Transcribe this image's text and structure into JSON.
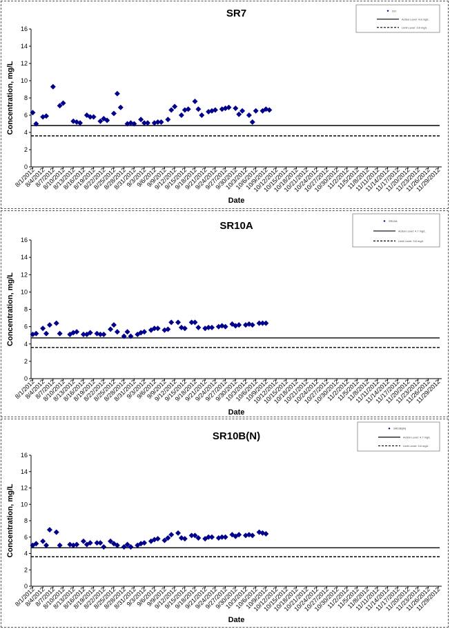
{
  "chart_data": [
    {
      "type": "scatter",
      "title": "SR7",
      "xlabel": "Date",
      "ylabel": "Concentration, mg/L",
      "ylim": [
        0,
        16
      ],
      "yticks": [
        0,
        2,
        4,
        6,
        8,
        10,
        12,
        14,
        16
      ],
      "grid": false,
      "legend_position": "top-right",
      "x_labels": [
        "8/1/2012",
        "8/4/2012",
        "8/7/2012",
        "8/10/2012",
        "8/13/2012",
        "8/16/2012",
        "8/19/2012",
        "8/22/2012",
        "8/25/2012",
        "8/28/2012",
        "8/31/2012",
        "9/3/2012",
        "9/6/2012",
        "9/9/2012",
        "9/12/2012",
        "9/15/2012",
        "9/18/2012",
        "9/21/2012",
        "9/24/2012",
        "9/27/2012",
        "9/30/2012",
        "10/3/2012",
        "10/6/2012",
        "10/9/2012",
        "10/12/2012",
        "10/15/2012",
        "10/18/2012",
        "10/21/2012",
        "10/24/2012",
        "10/27/2012",
        "10/30/2012",
        "11/2/2012",
        "11/5/2012",
        "11/8/2012",
        "11/11/2012",
        "11/14/2012",
        "11/17/2012",
        "11/20/2012",
        "11/23/2012",
        "11/26/2012",
        "11/29/2012"
      ],
      "legend": {
        "series_label": "DO",
        "upper_label": "Action Level: 4.8 mg/L",
        "lower_label": "Limit Level: 3.6 mg/L"
      },
      "reference_lines": [
        {
          "value": 4.8,
          "style": "solid"
        },
        {
          "value": 3.6,
          "style": "dashed"
        }
      ],
      "points": [
        {
          "day": 1,
          "value": 6.3
        },
        {
          "day": 2,
          "value": 5.0
        },
        {
          "day": 4,
          "value": 5.8
        },
        {
          "day": 5,
          "value": 5.9
        },
        {
          "day": 7,
          "value": 9.3
        },
        {
          "day": 9,
          "value": 7.1
        },
        {
          "day": 10,
          "value": 7.4
        },
        {
          "day": 13,
          "value": 5.3
        },
        {
          "day": 14,
          "value": 5.2
        },
        {
          "day": 15,
          "value": 5.1
        },
        {
          "day": 17,
          "value": 6.0
        },
        {
          "day": 18,
          "value": 5.8
        },
        {
          "day": 19,
          "value": 5.8
        },
        {
          "day": 21,
          "value": 5.3
        },
        {
          "day": 22,
          "value": 5.6
        },
        {
          "day": 23,
          "value": 5.4
        },
        {
          "day": 25,
          "value": 6.2
        },
        {
          "day": 26,
          "value": 8.5
        },
        {
          "day": 27,
          "value": 6.9
        },
        {
          "day": 29,
          "value": 5.0
        },
        {
          "day": 30,
          "value": 5.1
        },
        {
          "day": 31,
          "value": 5.0
        },
        {
          "day": 33,
          "value": 5.5
        },
        {
          "day": 34,
          "value": 5.1
        },
        {
          "day": 35,
          "value": 5.1
        },
        {
          "day": 37,
          "value": 5.1
        },
        {
          "day": 38,
          "value": 5.2
        },
        {
          "day": 39,
          "value": 5.2
        },
        {
          "day": 41,
          "value": 5.5
        },
        {
          "day": 42,
          "value": 6.6
        },
        {
          "day": 43,
          "value": 7.0
        },
        {
          "day": 45,
          "value": 6.0
        },
        {
          "day": 46,
          "value": 6.6
        },
        {
          "day": 47,
          "value": 6.7
        },
        {
          "day": 49,
          "value": 7.6
        },
        {
          "day": 50,
          "value": 6.7
        },
        {
          "day": 51,
          "value": 6.0
        },
        {
          "day": 53,
          "value": 6.4
        },
        {
          "day": 54,
          "value": 6.5
        },
        {
          "day": 55,
          "value": 6.6
        },
        {
          "day": 57,
          "value": 6.7
        },
        {
          "day": 58,
          "value": 6.8
        },
        {
          "day": 59,
          "value": 6.9
        },
        {
          "day": 61,
          "value": 6.8
        },
        {
          "day": 62,
          "value": 6.1
        },
        {
          "day": 63,
          "value": 6.5
        },
        {
          "day": 65,
          "value": 6.0
        },
        {
          "day": 66,
          "value": 5.2
        },
        {
          "day": 67,
          "value": 6.5
        },
        {
          "day": 69,
          "value": 6.5
        },
        {
          "day": 70,
          "value": 6.7
        },
        {
          "day": 71,
          "value": 6.6
        }
      ]
    },
    {
      "type": "scatter",
      "title": "SR10A",
      "xlabel": "Date",
      "ylabel": "Concentration, mg/L",
      "ylim": [
        0,
        16
      ],
      "yticks": [
        0,
        2,
        4,
        6,
        8,
        10,
        12,
        14,
        16
      ],
      "grid": false,
      "legend_position": "top-right",
      "x_labels": [
        "8/1/2012",
        "8/4/2012",
        "8/7/2012",
        "8/10/2012",
        "8/13/2012",
        "8/16/2012",
        "8/19/2012",
        "8/22/2012",
        "8/25/2012",
        "8/28/2012",
        "8/31/2012",
        "9/3/2012",
        "9/6/2012",
        "9/9/2012",
        "9/12/2012",
        "9/15/2012",
        "9/18/2012",
        "9/21/2012",
        "9/24/2012",
        "9/27/2012",
        "9/30/2012",
        "10/3/2012",
        "10/6/2012",
        "10/9/2012",
        "10/12/2012",
        "10/15/2012",
        "10/18/2012",
        "10/21/2012",
        "10/24/2012",
        "10/27/2012",
        "10/30/2012",
        "11/2/2012",
        "11/5/2012",
        "11/8/2012",
        "11/11/2012",
        "11/14/2012",
        "11/17/2012",
        "11/20/2012",
        "11/23/2012",
        "11/26/2012",
        "11/29/2012"
      ],
      "legend": {
        "series_label": "SR10A",
        "upper_label": "Action Level: 4.7 mg/L",
        "lower_label": "Limit Level: 3.6 mg/L"
      },
      "reference_lines": [
        {
          "value": 4.7,
          "style": "solid"
        },
        {
          "value": 3.6,
          "style": "dashed"
        }
      ],
      "points": [
        {
          "day": 1,
          "value": 5.1
        },
        {
          "day": 2,
          "value": 5.2
        },
        {
          "day": 4,
          "value": 5.8
        },
        {
          "day": 5,
          "value": 5.2
        },
        {
          "day": 6,
          "value": 6.2
        },
        {
          "day": 8,
          "value": 6.4
        },
        {
          "day": 9,
          "value": 5.2
        },
        {
          "day": 12,
          "value": 5.1
        },
        {
          "day": 13,
          "value": 5.3
        },
        {
          "day": 14,
          "value": 5.4
        },
        {
          "day": 16,
          "value": 5.1
        },
        {
          "day": 17,
          "value": 5.1
        },
        {
          "day": 18,
          "value": 5.3
        },
        {
          "day": 20,
          "value": 5.2
        },
        {
          "day": 21,
          "value": 5.1
        },
        {
          "day": 22,
          "value": 5.1
        },
        {
          "day": 24,
          "value": 5.7
        },
        {
          "day": 25,
          "value": 6.2
        },
        {
          "day": 26,
          "value": 5.4
        },
        {
          "day": 28,
          "value": 4.9
        },
        {
          "day": 29,
          "value": 5.4
        },
        {
          "day": 30,
          "value": 4.9
        },
        {
          "day": 32,
          "value": 5.1
        },
        {
          "day": 33,
          "value": 5.3
        },
        {
          "day": 34,
          "value": 5.4
        },
        {
          "day": 36,
          "value": 5.6
        },
        {
          "day": 37,
          "value": 5.8
        },
        {
          "day": 38,
          "value": 5.8
        },
        {
          "day": 40,
          "value": 5.6
        },
        {
          "day": 41,
          "value": 5.7
        },
        {
          "day": 42,
          "value": 6.5
        },
        {
          "day": 44,
          "value": 6.5
        },
        {
          "day": 45,
          "value": 5.9
        },
        {
          "day": 46,
          "value": 5.8
        },
        {
          "day": 48,
          "value": 6.5
        },
        {
          "day": 49,
          "value": 6.5
        },
        {
          "day": 50,
          "value": 5.9
        },
        {
          "day": 52,
          "value": 5.8
        },
        {
          "day": 53,
          "value": 5.9
        },
        {
          "day": 54,
          "value": 5.9
        },
        {
          "day": 56,
          "value": 6.0
        },
        {
          "day": 57,
          "value": 6.1
        },
        {
          "day": 58,
          "value": 6.0
        },
        {
          "day": 60,
          "value": 6.3
        },
        {
          "day": 61,
          "value": 6.1
        },
        {
          "day": 62,
          "value": 6.2
        },
        {
          "day": 64,
          "value": 6.2
        },
        {
          "day": 65,
          "value": 6.3
        },
        {
          "day": 66,
          "value": 6.2
        },
        {
          "day": 68,
          "value": 6.4
        },
        {
          "day": 69,
          "value": 6.4
        },
        {
          "day": 70,
          "value": 6.4
        }
      ]
    },
    {
      "type": "scatter",
      "title": "SR10B(N)",
      "xlabel": "Date",
      "ylabel": "Concentration, mg/L",
      "ylim": [
        0,
        16
      ],
      "yticks": [
        0,
        2,
        4,
        6,
        8,
        10,
        12,
        14,
        16
      ],
      "grid": false,
      "legend_position": "top-right",
      "x_labels": [
        "8/1/2012",
        "8/4/2012",
        "8/7/2012",
        "8/10/2012",
        "8/13/2012",
        "8/16/2012",
        "8/19/2012",
        "8/22/2012",
        "8/25/2012",
        "8/28/2012",
        "8/31/2012",
        "9/3/2012",
        "9/6/2012",
        "9/9/2012",
        "9/12/2012",
        "9/15/2012",
        "9/18/2012",
        "9/21/2012",
        "9/24/2012",
        "9/27/2012",
        "9/30/2012",
        "10/3/2012",
        "10/6/2012",
        "10/9/2012",
        "10/12/2012",
        "10/15/2012",
        "10/18/2012",
        "10/21/2012",
        "10/24/2012",
        "10/27/2012",
        "10/30/2012",
        "11/2/2012",
        "11/5/2012",
        "11/8/2012",
        "11/11/2012",
        "11/14/2012",
        "11/17/2012",
        "11/20/2012",
        "11/23/2012",
        "11/26/2012",
        "11/29/2012"
      ],
      "legend": {
        "series_label": "SR10B(N)",
        "upper_label": "Action Level: 4.7 mg/L",
        "lower_label": "Limit Level: 3.6 mg/L"
      },
      "reference_lines": [
        {
          "value": 4.7,
          "style": "solid"
        },
        {
          "value": 3.6,
          "style": "dashed"
        }
      ],
      "points": [
        {
          "day": 1,
          "value": 5.0
        },
        {
          "day": 2,
          "value": 5.2
        },
        {
          "day": 4,
          "value": 5.5
        },
        {
          "day": 5,
          "value": 5.0
        },
        {
          "day": 6,
          "value": 6.9
        },
        {
          "day": 8,
          "value": 6.6
        },
        {
          "day": 9,
          "value": 5.0
        },
        {
          "day": 12,
          "value": 5.1
        },
        {
          "day": 13,
          "value": 5.0
        },
        {
          "day": 14,
          "value": 5.1
        },
        {
          "day": 16,
          "value": 5.5
        },
        {
          "day": 17,
          "value": 5.1
        },
        {
          "day": 18,
          "value": 5.3
        },
        {
          "day": 20,
          "value": 5.3
        },
        {
          "day": 21,
          "value": 5.3
        },
        {
          "day": 22,
          "value": 4.8
        },
        {
          "day": 24,
          "value": 5.5
        },
        {
          "day": 25,
          "value": 5.2
        },
        {
          "day": 26,
          "value": 5.0
        },
        {
          "day": 28,
          "value": 4.8
        },
        {
          "day": 29,
          "value": 5.1
        },
        {
          "day": 30,
          "value": 4.8
        },
        {
          "day": 32,
          "value": 5.0
        },
        {
          "day": 33,
          "value": 5.2
        },
        {
          "day": 34,
          "value": 5.3
        },
        {
          "day": 36,
          "value": 5.5
        },
        {
          "day": 37,
          "value": 5.7
        },
        {
          "day": 38,
          "value": 5.8
        },
        {
          "day": 40,
          "value": 5.6
        },
        {
          "day": 41,
          "value": 5.9
        },
        {
          "day": 42,
          "value": 6.3
        },
        {
          "day": 44,
          "value": 6.5
        },
        {
          "day": 45,
          "value": 5.9
        },
        {
          "day": 46,
          "value": 5.8
        },
        {
          "day": 48,
          "value": 6.2
        },
        {
          "day": 49,
          "value": 6.2
        },
        {
          "day": 50,
          "value": 5.9
        },
        {
          "day": 52,
          "value": 5.8
        },
        {
          "day": 53,
          "value": 6.0
        },
        {
          "day": 54,
          "value": 6.0
        },
        {
          "day": 56,
          "value": 5.9
        },
        {
          "day": 57,
          "value": 6.0
        },
        {
          "day": 58,
          "value": 6.0
        },
        {
          "day": 60,
          "value": 6.3
        },
        {
          "day": 61,
          "value": 6.1
        },
        {
          "day": 62,
          "value": 6.3
        },
        {
          "day": 64,
          "value": 6.2
        },
        {
          "day": 65,
          "value": 6.3
        },
        {
          "day": 66,
          "value": 6.2
        },
        {
          "day": 68,
          "value": 6.6
        },
        {
          "day": 69,
          "value": 6.5
        },
        {
          "day": 70,
          "value": 6.4
        }
      ]
    }
  ],
  "colors": {
    "marker": "#00008B",
    "line": "#000000",
    "border": "#555555"
  }
}
